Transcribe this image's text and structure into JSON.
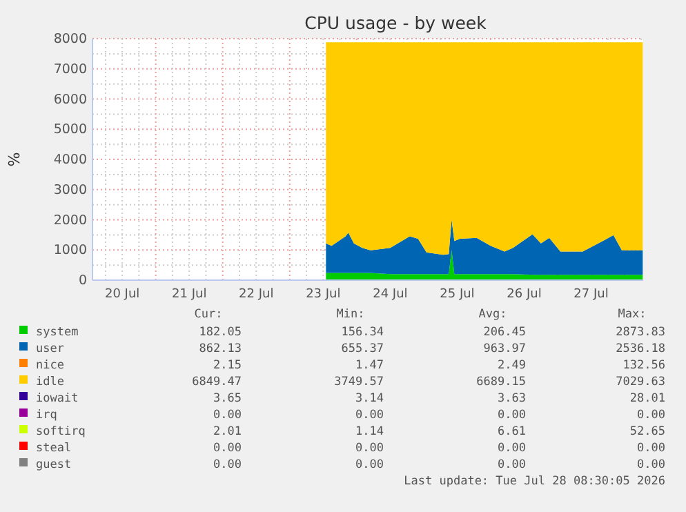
{
  "chart_data": {
    "type": "area",
    "stacked": true,
    "title": "CPU usage - by week",
    "ylabel": "%",
    "x": [
      "2026-07-23T13:00",
      "2026-07-23T15:00",
      "2026-07-23T20:00",
      "2026-07-23T21:00",
      "2026-07-23T23:00",
      "2026-07-24T02:00",
      "2026-07-24T05:00",
      "2026-07-24T12:00",
      "2026-07-24T19:00",
      "2026-07-24T22:00",
      "2026-07-25T01:00",
      "2026-07-25T07:00",
      "2026-07-25T09:00",
      "2026-07-25T10:00",
      "2026-07-25T11:00",
      "2026-07-25T13:00",
      "2026-07-25T19:00",
      "2026-07-26T00:00",
      "2026-07-26T05:00",
      "2026-07-26T08:00",
      "2026-07-26T15:00",
      "2026-07-26T18:00",
      "2026-07-26T21:00",
      "2026-07-27T01:00",
      "2026-07-27T09:00",
      "2026-07-27T17:00",
      "2026-07-27T20:00",
      "2026-07-27T23:00",
      "2026-07-28T06:30"
    ],
    "series": [
      {
        "name": "system",
        "color": "#00cc00",
        "values": [
          240,
          240,
          240,
          240,
          240,
          240,
          240,
          200,
          200,
          200,
          200,
          200,
          200,
          1000,
          200,
          200,
          200,
          200,
          200,
          200,
          180,
          180,
          180,
          180,
          180,
          180,
          180,
          180,
          180
        ]
      },
      {
        "name": "user",
        "color": "#0066b3",
        "values": [
          980,
          900,
          1210,
          1330,
          980,
          830,
          750,
          870,
          1250,
          1170,
          720,
          640,
          660,
          1010,
          1100,
          1170,
          1200,
          940,
          750,
          870,
          1340,
          1040,
          1220,
          770,
          770,
          1160,
          1310,
          810,
          810
        ]
      },
      {
        "name": "nice",
        "color": "#ff8000",
        "values": [
          null,
          null,
          null,
          null,
          null,
          null,
          null,
          null,
          null,
          null,
          null,
          null,
          null,
          null,
          null,
          null,
          null,
          null,
          null,
          null,
          null,
          null,
          null,
          null,
          null,
          null,
          null,
          null,
          null
        ]
      },
      {
        "name": "idle",
        "color": "#ffcc00",
        "values": [
          6660,
          6740,
          6430,
          6310,
          6660,
          6810,
          6890,
          6810,
          6430,
          6510,
          6960,
          7040,
          7020,
          5870,
          6580,
          6510,
          6480,
          6740,
          6930,
          6810,
          6360,
          6660,
          6480,
          6930,
          6930,
          6540,
          6390,
          6890,
          6890
        ]
      },
      {
        "name": "iowait",
        "color": "#330099",
        "values": [
          null,
          null,
          null,
          null,
          null,
          null,
          null,
          null,
          null,
          null,
          null,
          null,
          null,
          null,
          null,
          null,
          null,
          null,
          null,
          null,
          null,
          null,
          null,
          null,
          null,
          null,
          null,
          null,
          null
        ]
      },
      {
        "name": "irq",
        "color": "#990099",
        "values": [
          null,
          null,
          null,
          null,
          null,
          null,
          null,
          null,
          null,
          null,
          null,
          null,
          null,
          null,
          null,
          null,
          null,
          null,
          null,
          null,
          null,
          null,
          null,
          null,
          null,
          null,
          null,
          null,
          null
        ]
      },
      {
        "name": "softirq",
        "color": "#ccff00",
        "values": [
          null,
          null,
          null,
          null,
          null,
          null,
          null,
          null,
          null,
          null,
          null,
          null,
          null,
          null,
          null,
          null,
          null,
          null,
          null,
          null,
          null,
          null,
          null,
          null,
          null,
          null,
          null,
          null,
          null
        ]
      },
      {
        "name": "steal",
        "color": "#ff0000",
        "values": [
          null,
          null,
          null,
          null,
          null,
          null,
          null,
          null,
          null,
          null,
          null,
          null,
          null,
          null,
          null,
          null,
          null,
          null,
          null,
          null,
          null,
          null,
          null,
          null,
          null,
          null,
          null,
          null,
          null
        ]
      },
      {
        "name": "guest",
        "color": "#808080",
        "values": [
          null,
          null,
          null,
          null,
          null,
          null,
          null,
          null,
          null,
          null,
          null,
          null,
          null,
          null,
          null,
          null,
          null,
          null,
          null,
          null,
          null,
          null,
          null,
          null,
          null,
          null,
          null,
          null,
          null
        ]
      }
    ],
    "xlim": [
      "2026-07-20T01:20",
      "2026-07-28T06:40"
    ],
    "xticks": [
      {
        "value": "2026-07-20T12:00",
        "label": "20 Jul"
      },
      {
        "value": "2026-07-21T12:00",
        "label": "21 Jul"
      },
      {
        "value": "2026-07-22T12:00",
        "label": "22 Jul"
      },
      {
        "value": "2026-07-23T12:00",
        "label": "23 Jul"
      },
      {
        "value": "2026-07-24T12:00",
        "label": "24 Jul"
      },
      {
        "value": "2026-07-25T12:00",
        "label": "25 Jul"
      },
      {
        "value": "2026-07-26T12:00",
        "label": "26 Jul"
      },
      {
        "value": "2026-07-27T12:00",
        "label": "27 Jul"
      }
    ],
    "ylim": [
      0,
      8000
    ],
    "yticks": [
      0,
      1000,
      2000,
      3000,
      4000,
      5000,
      6000,
      7000,
      8000
    ],
    "grid": true,
    "legend": "bottom",
    "annotations": [
      "Cur:",
      "Min:",
      "Avg:",
      "Max:",
      "182.05",
      "156.34",
      "206.45",
      "2873.83",
      "862.13",
      "655.37",
      "963.97",
      "2536.18",
      "2.15",
      "1.47",
      "2.49",
      "132.56",
      "6849.47",
      "3749.57",
      "6689.15",
      "7029.63",
      "3.65",
      "3.14",
      "3.63",
      "28.01",
      "0.00",
      "0.00",
      "0.00",
      "0.00",
      "2.01",
      "1.14",
      "6.61",
      "52.65",
      "0.00",
      "0.00",
      "0.00",
      "0.00",
      "0.00",
      "0.00",
      "0.00",
      "0.00",
      "Last update: Tue Jul 28 08:30:05 2026"
    ]
  }
}
